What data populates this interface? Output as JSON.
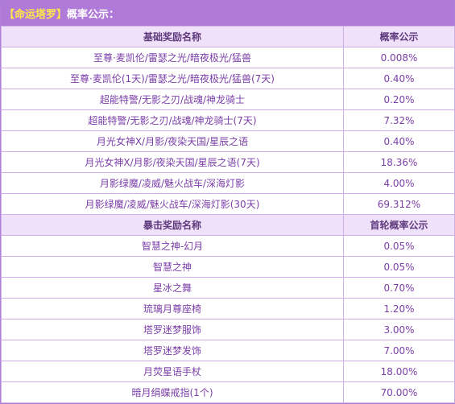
{
  "title": {
    "bracket_text": "【命运塔罗】",
    "suffix_text": "概率公示："
  },
  "basic_section": {
    "header": {
      "name": "基础奖励名称",
      "prob": "概率公示"
    },
    "rows": [
      {
        "name": "至尊·麦凯伦/雷瑟之光/暗夜极光/猛兽",
        "prob": "0.008%"
      },
      {
        "name": "至尊·麦凯伦(1天)/雷瑟之光/暗夜极光/猛兽(7天)",
        "prob": "0.40%"
      },
      {
        "name": "超能特警/无影之刃/战魂/神龙骑士",
        "prob": "0.20%"
      },
      {
        "name": "超能特警/无影之刃/战魂/神龙骑士(7天)",
        "prob": "7.32%"
      },
      {
        "name": "月光女神X/月影/夜染天国/星辰之语",
        "prob": "0.40%"
      },
      {
        "name": "月光女神X/月影/夜染天国/星辰之语(7天)",
        "prob": "18.36%"
      },
      {
        "name": "月影绿魔/凌威/魅火战车/深海灯影",
        "prob": "4.00%"
      },
      {
        "name": "月影绿魔/凌威/魅火战车/深海灯影(30天)",
        "prob": "69.312%"
      }
    ]
  },
  "crit_section": {
    "header": {
      "name": "暴击奖励名称",
      "prob": "首轮概率公示"
    },
    "rows": [
      {
        "name": "智慧之神-幻月",
        "prob": "0.05%"
      },
      {
        "name": "智慧之神",
        "prob": "0.05%"
      },
      {
        "name": "星冰之舞",
        "prob": "0.70%"
      },
      {
        "name": "琉璃月尊座椅",
        "prob": "1.20%"
      },
      {
        "name": "塔罗迷梦服饰",
        "prob": "3.00%"
      },
      {
        "name": "塔罗迷梦发饰",
        "prob": "7.00%"
      },
      {
        "name": "月荧星语手杖",
        "prob": "18.00%"
      },
      {
        "name": "暗月绢蝶戒指(1个)",
        "prob": "70.00%"
      }
    ]
  },
  "colors": {
    "title_bg": "#b07ad8",
    "bracket_text": "#ffe64a",
    "header_bg": "#f0e1fa",
    "cell_text": "#7b3ea8",
    "border": "#cfb0e6"
  }
}
